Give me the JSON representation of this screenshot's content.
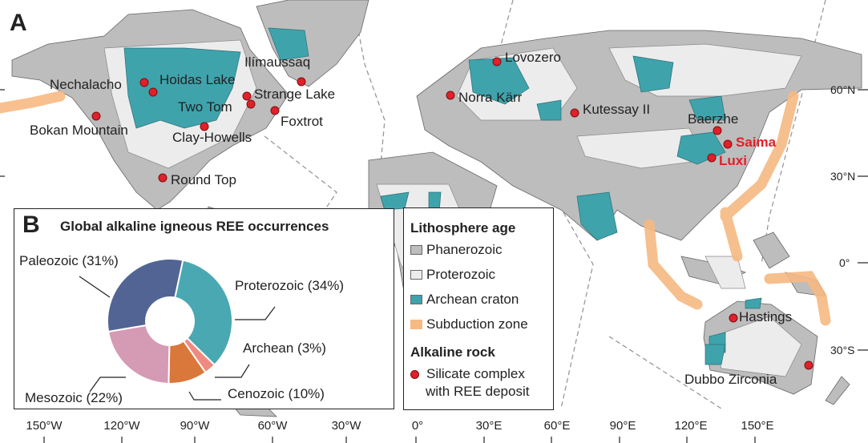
{
  "panel_a": {
    "letter": "A"
  },
  "panel_b": {
    "letter": "B",
    "title": "Global alkaline igneous REE occurrences"
  },
  "colors": {
    "phanerozoic": "#bdbdbd",
    "proterozoic": "#ececec",
    "archean": "#3fa3ac",
    "subduction": "#f6b982",
    "site": "#e0202a"
  },
  "sites": [
    {
      "name": "Nechalacho"
    },
    {
      "name": "Hoidas Lake"
    },
    {
      "name": "Ilímaussaq"
    },
    {
      "name": "Strange Lake"
    },
    {
      "name": "Two Tom"
    },
    {
      "name": "Foxtrot"
    },
    {
      "name": "Bokan Mountain"
    },
    {
      "name": "Clay-Howells"
    },
    {
      "name": "Round Top"
    },
    {
      "name": "Lovozero"
    },
    {
      "name": "Norra Kärr"
    },
    {
      "name": "Kutessay II"
    },
    {
      "name": "Baerzhe"
    },
    {
      "name": "Saima",
      "highlight": true
    },
    {
      "name": "Luxi",
      "highlight": true
    },
    {
      "name": "Hastings"
    },
    {
      "name": "Dubbo Zirconia"
    }
  ],
  "lat_labels": [
    "60°N",
    "30°N",
    "0°",
    "30°S"
  ],
  "lon_labels": [
    "150°W",
    "120°W",
    "90°W",
    "60°W",
    "30°W",
    "0°",
    "30°E",
    "60°E",
    "90°E",
    "120°E",
    "150°E"
  ],
  "legend": {
    "heading_age": "Lithosphere age",
    "items": [
      "Phanerozoic",
      "Proterozoic",
      "Archean craton",
      "Subduction zone"
    ],
    "heading_rock": "Alkaline rock",
    "rock_line1": "Silicate complex",
    "rock_line2": "with REE deposit"
  },
  "chart_data": {
    "type": "pie",
    "donut": true,
    "title": "Global alkaline igneous REE occurrences",
    "categories": [
      "Proterozoic",
      "Archean",
      "Cenozoic",
      "Mesozoic",
      "Paleozoic"
    ],
    "values": [
      34,
      3,
      10,
      22,
      31
    ],
    "labels": [
      "Proterozoic (34%)",
      "Archean (3%)",
      "Cenozoic (10%)",
      "Mesozoic (22%)",
      "Paleozoic (31%)"
    ],
    "colors": [
      "#4aa8b3",
      "#ef8a80",
      "#d9783a",
      "#d59ab4",
      "#516494"
    ]
  }
}
